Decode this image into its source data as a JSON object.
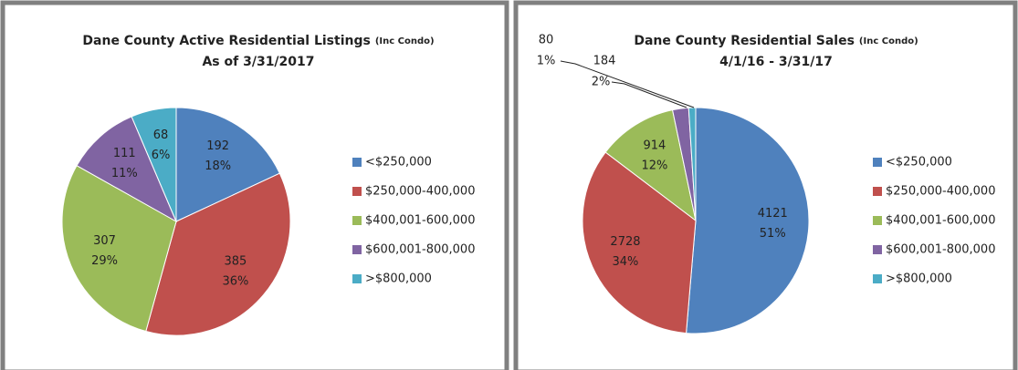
{
  "chart_data": [
    {
      "type": "pie",
      "title": "Dane County Active Residential Listings",
      "title_note": "(Inc Condo)",
      "subtitle": "As of 3/31/2017",
      "categories": [
        "<$250,000",
        "$250,000-400,000",
        "$400,001-600,000",
        "$600,001-800,000",
        ">$800,000"
      ],
      "values": [
        192,
        385,
        307,
        111,
        68
      ],
      "percent_labels": [
        "18%",
        "36%",
        "29%",
        "11%",
        "6%"
      ],
      "colors": [
        "#4f81bd",
        "#c0504d",
        "#9bbb59",
        "#8064a2",
        "#4bacc6"
      ]
    },
    {
      "type": "pie",
      "title": "Dane County Residential Sales",
      "title_note": "(Inc Condo)",
      "subtitle": "4/1/16  - 3/31/17",
      "categories": [
        "<$250,000",
        "$250,000-400,000",
        "$400,001-600,000",
        "$600,001-800,000",
        ">$800,000"
      ],
      "values": [
        4121,
        2728,
        914,
        184,
        80
      ],
      "percent_labels": [
        "51%",
        "34%",
        "12%",
        "2%",
        "1%"
      ],
      "colors": [
        "#4f81bd",
        "#c0504d",
        "#9bbb59",
        "#8064a2",
        "#4bacc6"
      ]
    }
  ]
}
